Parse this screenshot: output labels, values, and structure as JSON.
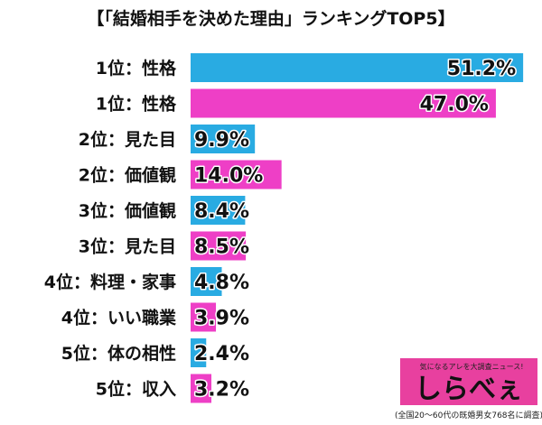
{
  "chart_data": {
    "type": "bar",
    "orientation": "horizontal",
    "title": "【「結婚相手を決めた理由」ランキングTOP5】",
    "categories": [
      "1位：性格",
      "1位：性格",
      "2位：見た目",
      "2位：価値観",
      "3位：価値観",
      "3位：見た目",
      "4位：料理・家事",
      "4位：いい職業",
      "5位：体の相性",
      "5位：収入"
    ],
    "values": [
      51.2,
      47.0,
      9.9,
      14.0,
      8.4,
      8.5,
      4.8,
      3.9,
      2.4,
      3.2
    ],
    "value_labels": [
      "51.2%",
      "47.0%",
      "9.9%",
      "14.0%",
      "8.4%",
      "8.5%",
      "4.8%",
      "3.9%",
      "2.4%",
      "3.2%"
    ],
    "bar_colors": [
      "#29abe2",
      "#ee3fc6",
      "#29abe2",
      "#ee3fc6",
      "#29abe2",
      "#ee3fc6",
      "#29abe2",
      "#ee3fc6",
      "#29abe2",
      "#ee3fc6"
    ],
    "xlim": [
      0,
      55
    ],
    "grid": false
  },
  "logo": {
    "tagline": "気になるアレを大調査ニュース!",
    "brand": "しらべぇ",
    "bg_color": "#e8409f"
  },
  "footnote": "(全国20〜60代の既婚男女768名に調査)"
}
